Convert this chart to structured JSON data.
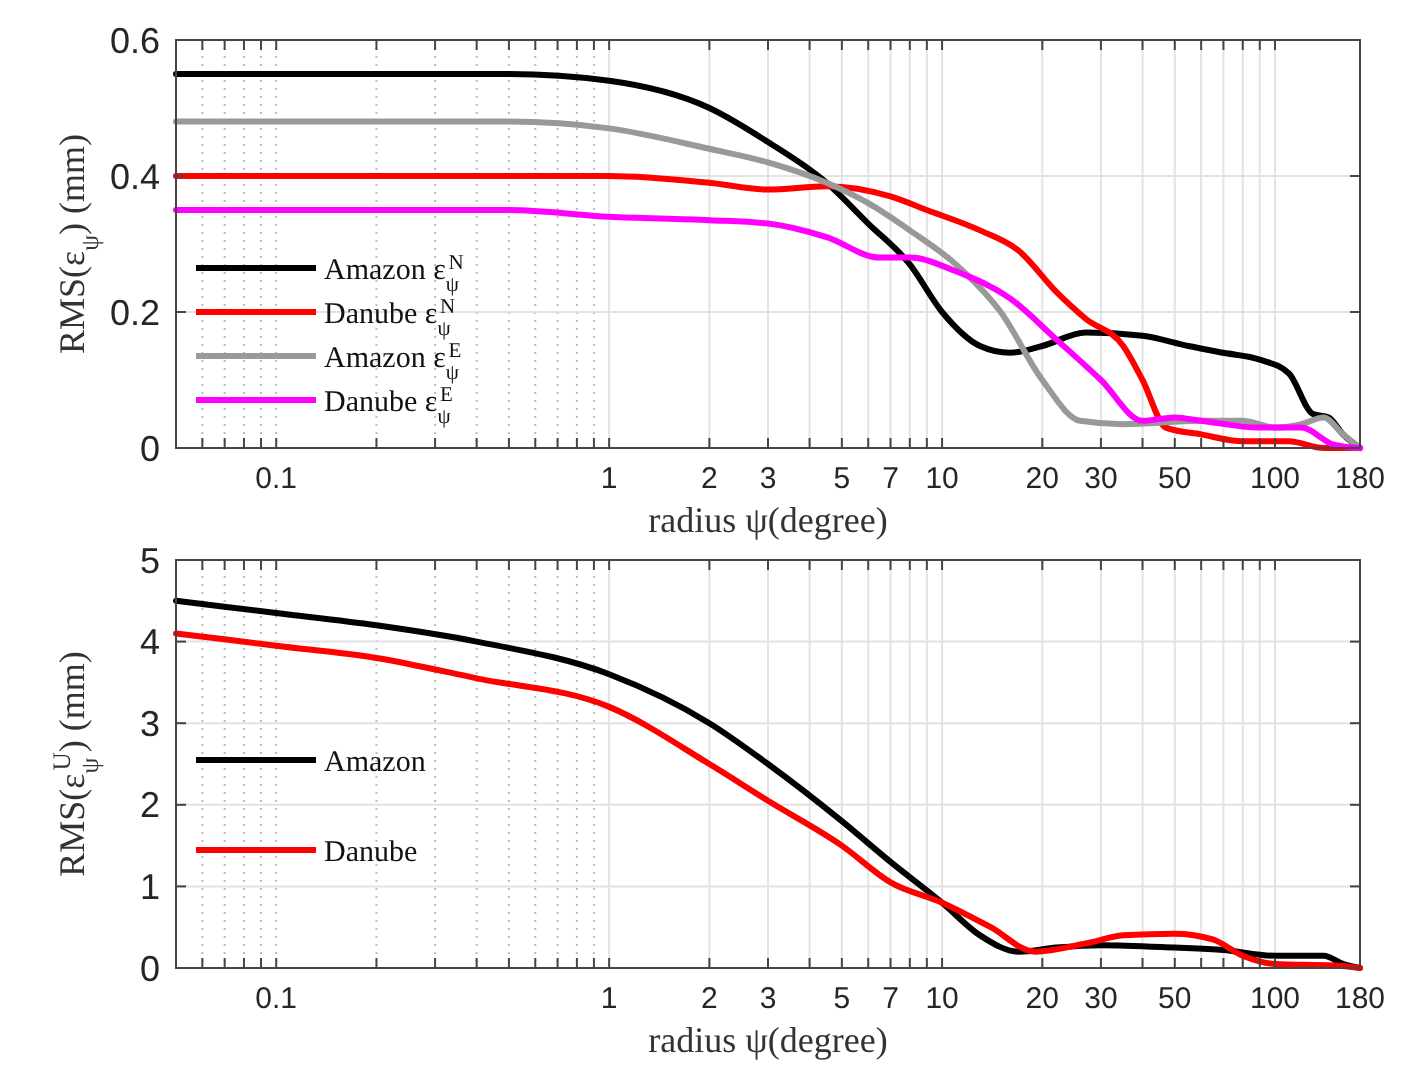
{
  "chart_data": [
    {
      "type": "line",
      "xlabel": "radius ψ(degree)",
      "ylabel": "RMS(ε$_{ψ}$) (mm)",
      "log": "x",
      "grid": true,
      "legend": "bottom left",
      "xlim": [
        0.05,
        180
      ],
      "ylim": [
        0,
        0.6
      ],
      "yticks": [
        0,
        0.2,
        0.4,
        0.6
      ],
      "xticks": [
        {
          "value": 0.06,
          "label": null
        },
        {
          "value": 0.07,
          "label": null
        },
        {
          "value": 0.08,
          "label": null
        },
        {
          "value": 0.09,
          "label": null
        },
        0.1,
        {
          "value": 0.2,
          "label": null
        },
        {
          "value": 0.3,
          "label": null
        },
        {
          "value": 0.4,
          "label": null
        },
        {
          "value": 0.5,
          "label": null
        },
        {
          "value": 0.6,
          "label": null
        },
        {
          "value": 0.7,
          "label": null
        },
        {
          "value": 0.8,
          "label": null
        },
        {
          "value": 0.9,
          "label": null
        },
        1,
        2,
        3,
        {
          "value": 4,
          "label": null
        },
        5,
        {
          "value": 6,
          "label": null
        },
        7,
        {
          "value": 8,
          "label": null
        },
        {
          "value": 9,
          "label": null
        },
        10,
        20,
        30,
        {
          "value": 40,
          "label": null
        },
        50,
        {
          "value": 60,
          "label": null
        },
        {
          "value": 70,
          "label": null
        },
        {
          "value": 80,
          "label": null
        },
        {
          "value": 90,
          "label": null
        },
        100,
        180
      ],
      "series": [
        {
          "name": "Amazon ε$_{ψ}$$^{N}$",
          "color": "#000000",
          "x": [
            0.05,
            0.2,
            0.5,
            1,
            2,
            3,
            4.5,
            6,
            8,
            10,
            13,
            16,
            20,
            27,
            40,
            55,
            70,
            90,
            110,
            130,
            145,
            160,
            180
          ],
          "values": [
            0.55,
            0.55,
            0.55,
            0.54,
            0.5,
            0.45,
            0.39,
            0.33,
            0.27,
            0.2,
            0.15,
            0.14,
            0.15,
            0.17,
            0.165,
            0.15,
            0.14,
            0.13,
            0.11,
            0.05,
            0.045,
            0.02,
            0
          ]
        },
        {
          "name": "Danube ε$_{ψ}$$^{N}$",
          "color": "#ff0000",
          "x": [
            0.05,
            0.5,
            1,
            2,
            3,
            4.5,
            7,
            9,
            13,
            17,
            22,
            27,
            35,
            40,
            47,
            60,
            80,
            110,
            140,
            180
          ],
          "values": [
            0.4,
            0.4,
            0.4,
            0.39,
            0.38,
            0.385,
            0.37,
            0.35,
            0.32,
            0.29,
            0.23,
            0.19,
            0.15,
            0.1,
            0.03,
            0.02,
            0.01,
            0.01,
            0,
            0
          ]
        },
        {
          "name": "Amazon ε$_{ψ}$$^{E}$",
          "color": "#999999",
          "x": [
            0.05,
            0.5,
            1,
            2,
            3,
            4.5,
            6,
            8,
            11,
            15,
            20,
            26,
            35,
            60,
            80,
            100,
            120,
            140,
            160,
            180
          ],
          "values": [
            0.48,
            0.48,
            0.47,
            0.44,
            0.42,
            0.39,
            0.36,
            0.32,
            0.27,
            0.2,
            0.1,
            0.04,
            0.035,
            0.04,
            0.04,
            0.03,
            0.035,
            0.045,
            0.02,
            0
          ]
        },
        {
          "name": "Danube ε$_{ψ}$$^{E}$",
          "color": "#ff00ff",
          "x": [
            0.05,
            0.5,
            1,
            2,
            3,
            4.5,
            6.5,
            8,
            11,
            16,
            22,
            30,
            40,
            50,
            60,
            90,
            120,
            150,
            180
          ],
          "values": [
            0.35,
            0.35,
            0.34,
            0.335,
            0.33,
            0.31,
            0.28,
            0.28,
            0.26,
            0.22,
            0.16,
            0.1,
            0.04,
            0.045,
            0.04,
            0.03,
            0.03,
            0.005,
            0
          ]
        }
      ]
    },
    {
      "type": "line",
      "xlabel": "radius ψ(degree)",
      "ylabel": "RMS(ε$_{ψ}$$^{U}$) (mm)",
      "log": "x",
      "grid": true,
      "legend": "left",
      "xlim": [
        0.05,
        180
      ],
      "ylim": [
        0,
        5
      ],
      "yticks": [
        0,
        1,
        2,
        3,
        4,
        5
      ],
      "xticks": [
        {
          "value": 0.06,
          "label": null
        },
        {
          "value": 0.07,
          "label": null
        },
        {
          "value": 0.08,
          "label": null
        },
        {
          "value": 0.09,
          "label": null
        },
        0.1,
        {
          "value": 0.2,
          "label": null
        },
        {
          "value": 0.3,
          "label": null
        },
        {
          "value": 0.4,
          "label": null
        },
        {
          "value": 0.5,
          "label": null
        },
        {
          "value": 0.6,
          "label": null
        },
        {
          "value": 0.7,
          "label": null
        },
        {
          "value": 0.8,
          "label": null
        },
        {
          "value": 0.9,
          "label": null
        },
        1,
        2,
        3,
        {
          "value": 4,
          "label": null
        },
        5,
        {
          "value": 6,
          "label": null
        },
        7,
        {
          "value": 8,
          "label": null
        },
        {
          "value": 9,
          "label": null
        },
        10,
        20,
        30,
        {
          "value": 40,
          "label": null
        },
        50,
        {
          "value": 60,
          "label": null
        },
        {
          "value": 70,
          "label": null
        },
        {
          "value": 80,
          "label": null
        },
        {
          "value": 90,
          "label": null
        },
        100,
        180
      ],
      "series": [
        {
          "name": "Amazon",
          "color": "#000000",
          "x": [
            0.05,
            0.1,
            0.2,
            0.4,
            1,
            2,
            3,
            5,
            7,
            10,
            13,
            17,
            22,
            30,
            50,
            70,
            100,
            140,
            160,
            180
          ],
          "values": [
            4.5,
            4.35,
            4.2,
            4.0,
            3.6,
            3.0,
            2.5,
            1.8,
            1.3,
            0.8,
            0.4,
            0.2,
            0.25,
            0.28,
            0.25,
            0.22,
            0.15,
            0.15,
            0.05,
            0
          ]
        },
        {
          "name": "Danube",
          "color": "#ff0000",
          "x": [
            0.05,
            0.1,
            0.2,
            0.4,
            1,
            2,
            3,
            5,
            7,
            10,
            14,
            19,
            27,
            35,
            50,
            65,
            80,
            100,
            150,
            180
          ],
          "values": [
            4.1,
            3.95,
            3.8,
            3.55,
            3.2,
            2.5,
            2.05,
            1.5,
            1.05,
            0.8,
            0.5,
            0.2,
            0.3,
            0.4,
            0.42,
            0.35,
            0.15,
            0.05,
            0.03,
            0
          ]
        }
      ]
    }
  ]
}
